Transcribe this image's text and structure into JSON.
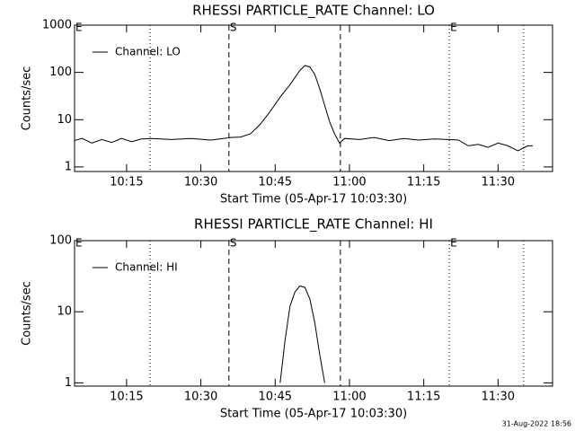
{
  "chart_data": [
    {
      "type": "line",
      "title": "RHESSI PARTICLE_RATE Channel: LO",
      "xlabel": "Start Time (05-Apr-17 10:03:30)",
      "ylabel": "Counts/sec",
      "log_y": true,
      "legend": "upper left",
      "xlim": [
        "10:04:30",
        "11:41:00"
      ],
      "ylim": [
        0.8,
        1000
      ],
      "xticks": [
        "10:15",
        "10:30",
        "10:45",
        "11:00",
        "11:15",
        "11:30"
      ],
      "yticks": [
        1,
        10,
        100,
        1000
      ],
      "markers": [
        {
          "x": "10:04:30",
          "style": "dotted",
          "label": "E"
        },
        {
          "x": "10:19:45",
          "style": "dotted"
        },
        {
          "x": "10:35:40",
          "style": "dashed",
          "label": "S"
        },
        {
          "x": "10:58:10",
          "style": "dashed"
        },
        {
          "x": "11:20:10",
          "style": "dotted",
          "label": "E"
        },
        {
          "x": "11:35:10",
          "style": "dotted"
        }
      ],
      "x": [
        "10:04:00",
        "10:06:00",
        "10:08:00",
        "10:10:00",
        "10:12:00",
        "10:14:00",
        "10:16:00",
        "10:18:00",
        "10:20:00",
        "10:24:00",
        "10:28:00",
        "10:32:00",
        "10:36:00",
        "10:38:00",
        "10:40:00",
        "10:42:00",
        "10:44:00",
        "10:46:00",
        "10:48:00",
        "10:50:00",
        "10:51:00",
        "10:52:00",
        "10:53:00",
        "10:54:00",
        "10:55:00",
        "10:56:00",
        "10:57:00",
        "10:58:00",
        "10:59:00",
        "11:02:00",
        "11:05:00",
        "11:08:00",
        "11:11:00",
        "11:14:00",
        "11:17:00",
        "11:20:00",
        "11:22:00",
        "11:24:00",
        "11:26:00",
        "11:28:00",
        "11:30:00",
        "11:32:00",
        "11:34:00",
        "11:36:00",
        "11:37:00"
      ],
      "series": [
        {
          "name": "Channel: LO",
          "color": "#000000",
          "values": [
            3.5,
            4,
            3.2,
            3.8,
            3.3,
            4,
            3.4,
            3.9,
            4,
            3.8,
            4,
            3.7,
            4.2,
            4.3,
            5,
            8,
            15,
            30,
            55,
            110,
            140,
            130,
            90,
            45,
            20,
            9,
            5,
            3.2,
            4,
            3.8,
            4.2,
            3.6,
            4,
            3.7,
            3.9,
            3.8,
            3.7,
            2.8,
            3,
            2.6,
            3.2,
            2.8,
            2.2,
            2.8,
            2.8
          ]
        }
      ]
    },
    {
      "type": "line",
      "title": "RHESSI PARTICLE_RATE Channel: HI",
      "xlabel": "Start Time (05-Apr-17 10:03:30)",
      "ylabel": "Counts/sec",
      "log_y": true,
      "legend": "upper left",
      "xlim": [
        "10:04:30",
        "11:41:00"
      ],
      "ylim": [
        0.9,
        100
      ],
      "xticks": [
        "10:15",
        "10:30",
        "10:45",
        "11:00",
        "11:15",
        "11:30"
      ],
      "yticks": [
        1,
        10,
        100
      ],
      "markers": [
        {
          "x": "10:04:30",
          "style": "dotted",
          "label": "E"
        },
        {
          "x": "10:19:45",
          "style": "dotted"
        },
        {
          "x": "10:35:40",
          "style": "dashed",
          "label": "S"
        },
        {
          "x": "10:58:10",
          "style": "dashed"
        },
        {
          "x": "11:20:10",
          "style": "dotted",
          "label": "E"
        },
        {
          "x": "11:35:10",
          "style": "dotted"
        }
      ],
      "x": [
        "10:46:00",
        "10:47:00",
        "10:48:00",
        "10:49:00",
        "10:50:00",
        "10:51:00",
        "10:52:00",
        "10:53:00",
        "10:54:00",
        "10:55:00"
      ],
      "series": [
        {
          "name": "Channel: HI",
          "color": "#000000",
          "values": [
            1,
            4,
            12,
            19,
            23,
            22,
            15,
            7,
            2.5,
            1
          ]
        }
      ]
    }
  ],
  "footer": "31-Aug-2022 18:56"
}
